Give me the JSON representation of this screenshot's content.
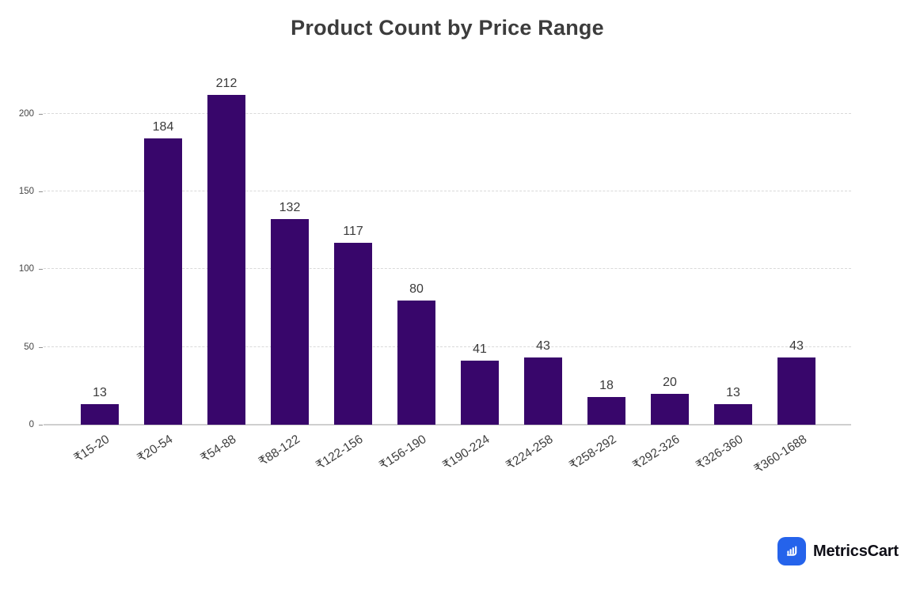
{
  "chart_data": {
    "type": "bar",
    "title": "Product Count by Price Range",
    "categories": [
      "₹15-20",
      "₹20-54",
      "₹54-88",
      "₹88-122",
      "₹122-156",
      "₹156-190",
      "₹190-224",
      "₹224-258",
      "₹258-292",
      "₹292-326",
      "₹326-360",
      "₹360-1688"
    ],
    "values": [
      13,
      184,
      212,
      132,
      117,
      80,
      41,
      43,
      18,
      20,
      13,
      43
    ],
    "xlabel": "",
    "ylabel": "",
    "ylim": [
      0,
      227
    ],
    "yticks": [
      0,
      50,
      100,
      150,
      200
    ],
    "grid": "horizontal-dashed",
    "legend": "none",
    "value_labels": true,
    "bar_color": "#38066B",
    "title_color": "#3C3C3C",
    "grid_color": "#D9D9D9",
    "axis_color": "#CFCFCF"
  },
  "branding": {
    "name": "MetricsCart",
    "logo_icon": "bar-chart-cart-icon",
    "logo_color": "#2563EB"
  }
}
